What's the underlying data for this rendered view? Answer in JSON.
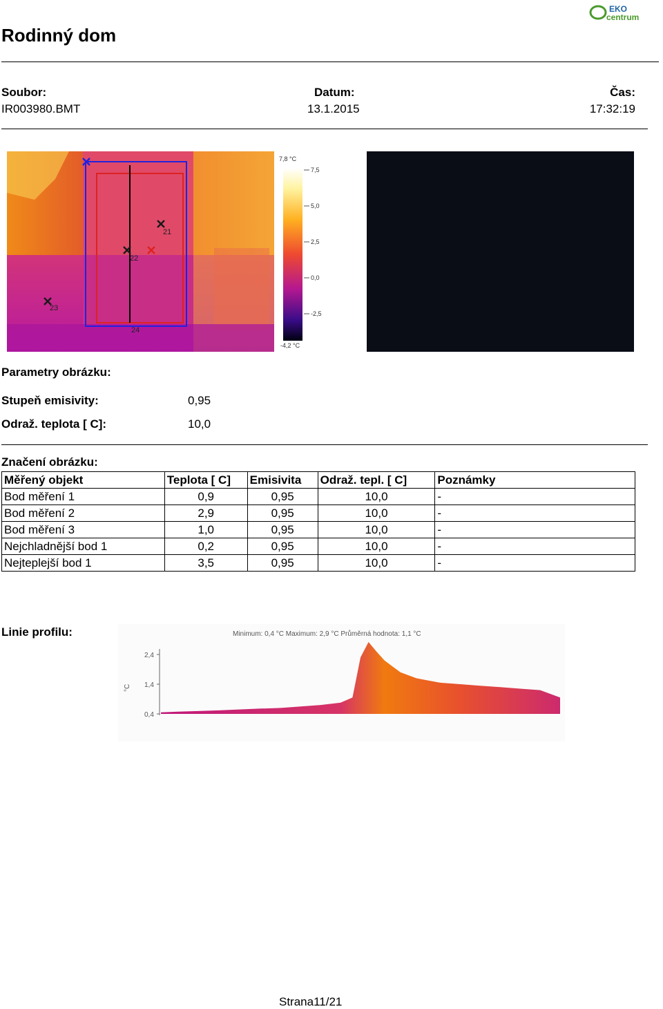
{
  "header": {
    "title": "Rodinný dom",
    "logo": {
      "top": "EKO",
      "bottom": "centrum",
      "color_green": "#4a9a2c",
      "color_blue": "#1f63a8"
    }
  },
  "file_info": {
    "file_label": "Soubor:",
    "file_value": "IR003980.BMT",
    "date_label": "Datum:",
    "date_value": "13.1.2015",
    "time_label": "Čas:",
    "time_value": "17:32:19"
  },
  "thermogram": {
    "marker_labels": [
      "21",
      "22",
      "23",
      "24"
    ],
    "scale": {
      "max_label": "7,8 °C",
      "min_label": "-4,2 °C",
      "ticks": [
        "7,5",
        "5,0",
        "2,5",
        "0,0",
        "-2,5"
      ]
    }
  },
  "image_params": {
    "section_label": "Parametry obrázku:",
    "emissivity_label": "Stupeň emisivity:",
    "emissivity_value": "0,95",
    "reflected_label": "Odraž. teplota [ C]:",
    "reflected_value": "10,0"
  },
  "markings": {
    "section_label": "Značení obrázku:",
    "headers": [
      "Měřený objekt",
      "Teplota [ C]",
      "Emisivita",
      "Odraž. tepl. [ C]",
      "Poznámky"
    ],
    "rows": [
      [
        "Bod měření 1",
        "0,9",
        "0,95",
        "10,0",
        "-"
      ],
      [
        "Bod měření 2",
        "2,9",
        "0,95",
        "10,0",
        "-"
      ],
      [
        "Bod měření 3",
        "1,0",
        "0,95",
        "10,0",
        "-"
      ],
      [
        "Nejchladnější bod 1",
        "0,2",
        "0,95",
        "10,0",
        "-"
      ],
      [
        "Nejteplejší bod 1",
        "3,5",
        "0,95",
        "10,0",
        "-"
      ]
    ]
  },
  "profile": {
    "section_label": "Linie profilu:",
    "summary": "Minimum: 0,4 °C Maximum: 2,9 °C Průměrná hodnota: 1,1 °C",
    "y_unit": "°C",
    "y_ticks": [
      "2,4",
      "1,4",
      "0,4"
    ]
  },
  "chart_data": {
    "type": "area",
    "title": "Minimum: 0,4 °C Maximum: 2,9 °C Průměrná hodnota: 1,1 °C",
    "xlabel": "",
    "ylabel": "°C",
    "ylim": [
      0.4,
      2.4
    ],
    "y_ticks": [
      2.4,
      1.4,
      0.4
    ],
    "x": [
      0,
      5,
      10,
      15,
      20,
      25,
      30,
      35,
      40,
      45,
      48,
      50,
      52,
      54,
      56,
      58,
      60,
      62,
      64,
      66,
      68,
      70,
      75,
      80,
      85,
      90,
      95,
      100
    ],
    "values": [
      0.45,
      0.48,
      0.5,
      0.52,
      0.55,
      0.58,
      0.6,
      0.65,
      0.7,
      0.78,
      0.95,
      2.3,
      2.9,
      2.5,
      2.2,
      2.0,
      1.8,
      1.7,
      1.6,
      1.55,
      1.5,
      1.45,
      1.4,
      1.35,
      1.3,
      1.25,
      1.2,
      0.95
    ],
    "colors": {
      "low": "#c0197a",
      "high": "#f07a10"
    },
    "grid": false
  },
  "footer": {
    "page": "Strana11/21"
  }
}
